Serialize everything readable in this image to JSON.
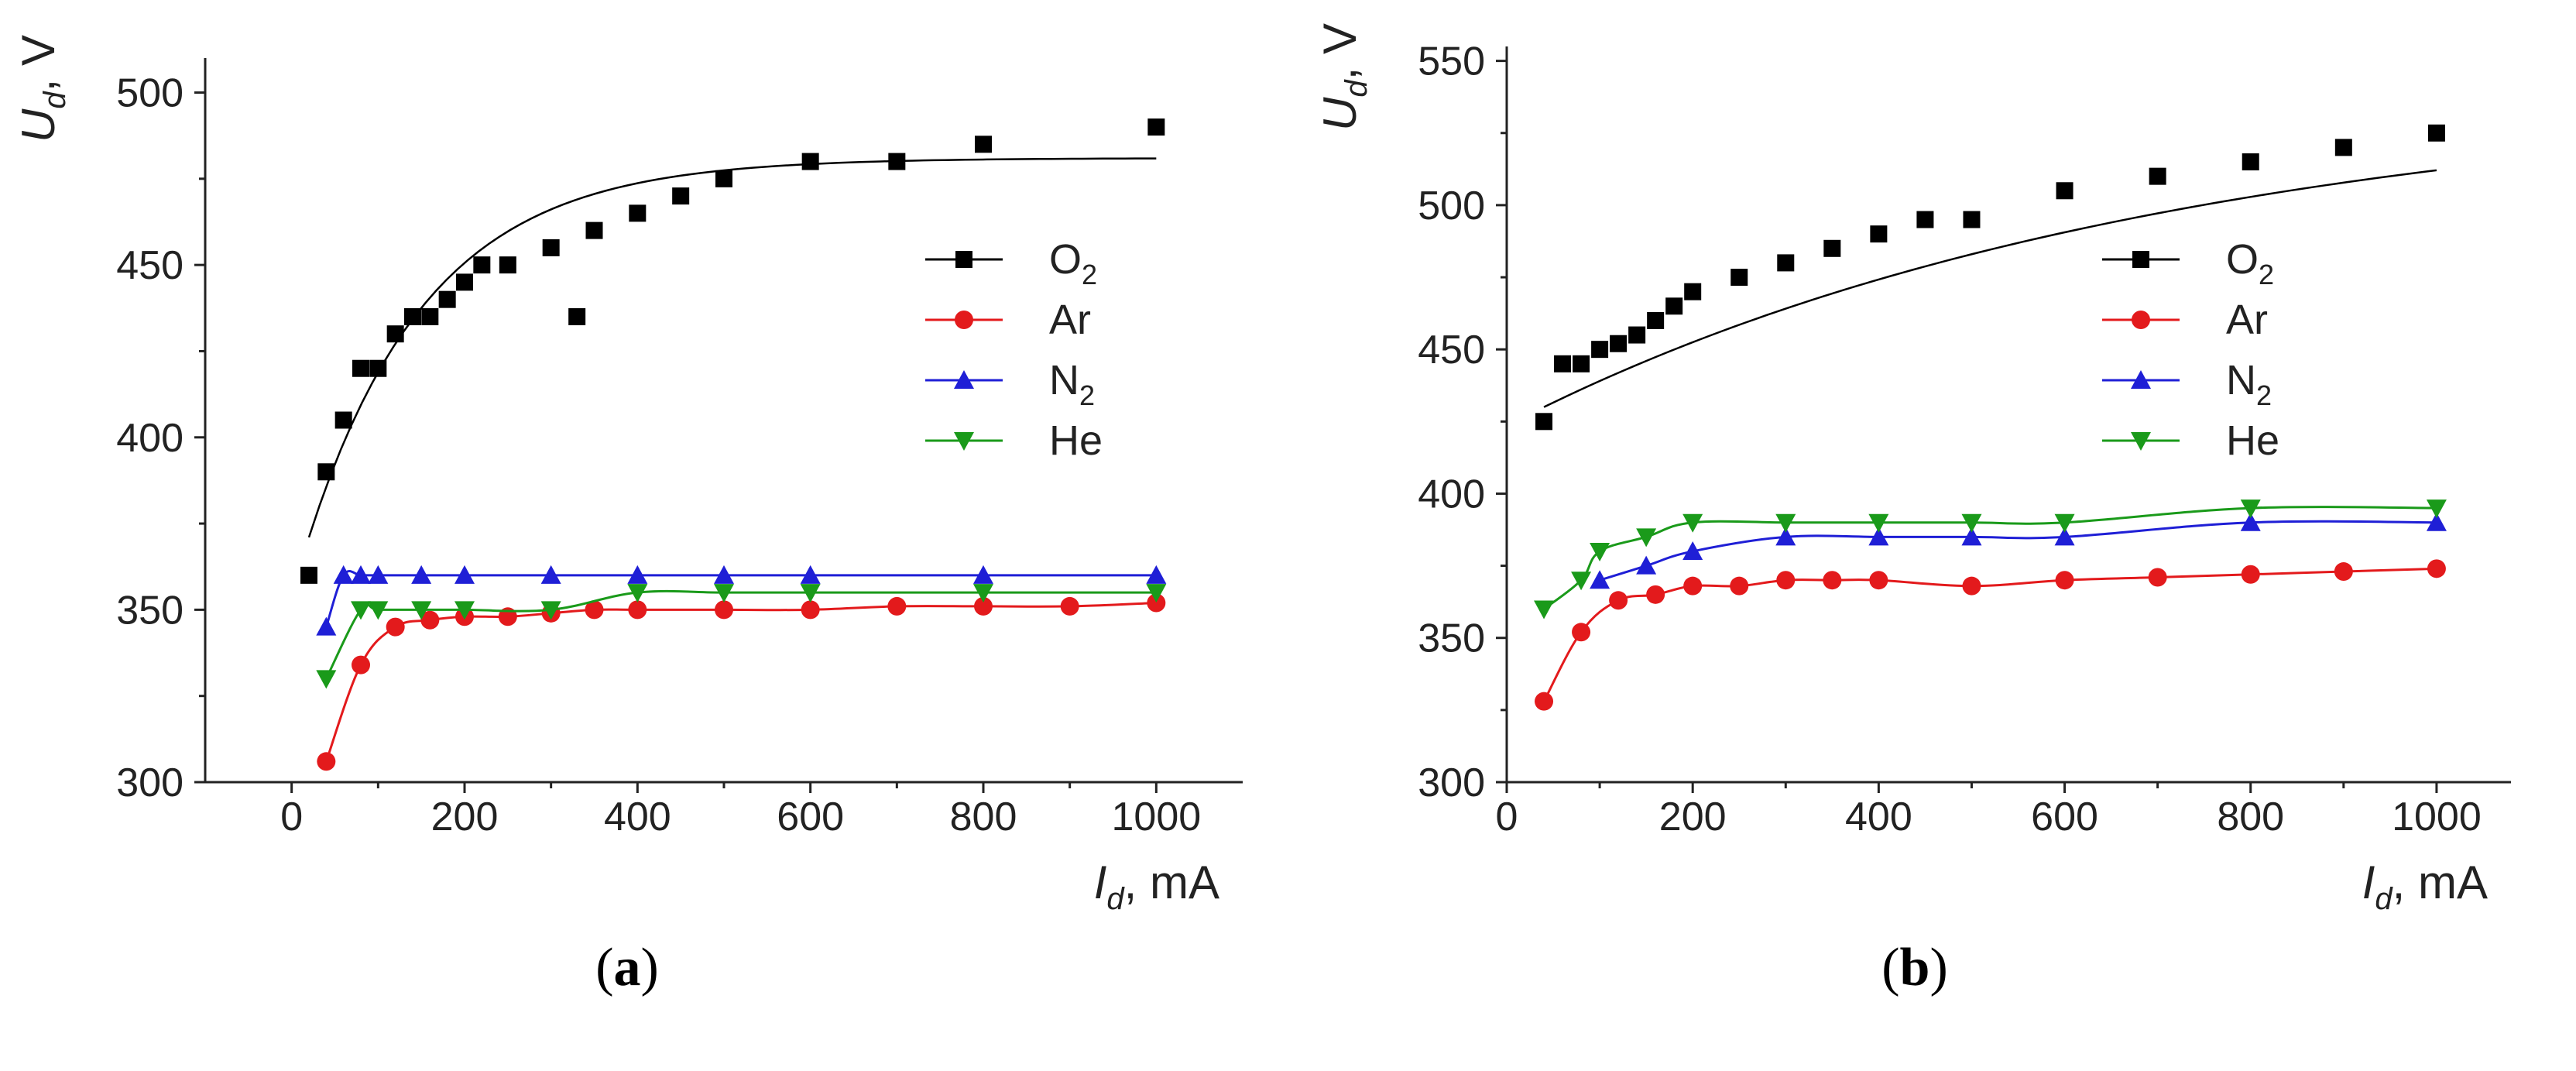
{
  "chart_data": [
    {
      "type": "scatter",
      "panel": "a",
      "caption_open": "(",
      "caption_letter": "a",
      "caption_close": ")",
      "xlabel_var": "I",
      "xlabel_sub": "d",
      "xlabel_unit": ", mA",
      "ylabel_var": "U",
      "ylabel_sub": "d",
      "ylabel_unit": ", V",
      "xlim": [
        -100,
        1100
      ],
      "ylim": [
        300,
        510
      ],
      "xticks": [
        0,
        200,
        400,
        600,
        800,
        1000
      ],
      "yticks": [
        300,
        350,
        400,
        450,
        500
      ],
      "legend_position": "right",
      "series": [
        {
          "name": "O",
          "name_sub": "2",
          "color": "#000000",
          "marker": "square",
          "fit": "exp",
          "fit_params": {
            "a": 481,
            "b": 110,
            "tau": 140
          },
          "x": [
            20,
            40,
            60,
            80,
            100,
            120,
            140,
            160,
            180,
            200,
            220,
            250,
            300,
            330,
            350,
            400,
            450,
            500,
            600,
            700,
            800,
            1000
          ],
          "y": [
            360,
            390,
            405,
            420,
            420,
            430,
            435,
            435,
            440,
            445,
            450,
            450,
            455,
            435,
            460,
            465,
            470,
            475,
            480,
            480,
            485,
            490
          ]
        },
        {
          "name": "Ar",
          "name_sub": "",
          "color": "#e31a1c",
          "marker": "circle",
          "fit": "line",
          "x": [
            40,
            80,
            120,
            160,
            200,
            250,
            300,
            350,
            400,
            500,
            600,
            700,
            800,
            900,
            1000
          ],
          "y": [
            306,
            334,
            345,
            347,
            348,
            348,
            349,
            350,
            350,
            350,
            350,
            351,
            351,
            351,
            352
          ]
        },
        {
          "name": "N",
          "name_sub": "2",
          "color": "#1f1fd6",
          "marker": "triangle-up",
          "fit": "line",
          "x": [
            40,
            60,
            80,
            100,
            150,
            200,
            300,
            400,
            500,
            600,
            800,
            1000
          ],
          "y": [
            345,
            360,
            360,
            360,
            360,
            360,
            360,
            360,
            360,
            360,
            360,
            360
          ]
        },
        {
          "name": "He",
          "name_sub": "",
          "color": "#1a9a1a",
          "marker": "triangle-down",
          "fit": "line",
          "x": [
            40,
            80,
            100,
            150,
            200,
            300,
            400,
            500,
            600,
            800,
            1000
          ],
          "y": [
            330,
            350,
            350,
            350,
            350,
            350,
            355,
            355,
            355,
            355,
            355
          ]
        }
      ]
    },
    {
      "type": "scatter",
      "panel": "b",
      "caption_open": "(",
      "caption_letter": "b",
      "caption_close": ")",
      "xlabel_var": "I",
      "xlabel_sub": "d",
      "xlabel_unit": ", mA",
      "ylabel_var": "U",
      "ylabel_sub": "d",
      "ylabel_unit": ", V",
      "xlim": [
        0,
        1080
      ],
      "ylim": [
        300,
        555
      ],
      "xticks": [
        0,
        200,
        400,
        600,
        800,
        1000
      ],
      "yticks": [
        300,
        350,
        400,
        450,
        500,
        550
      ],
      "legend_position": "right",
      "series": [
        {
          "name": "O",
          "name_sub": "2",
          "color": "#000000",
          "marker": "square",
          "fit": "exp",
          "fit_params": {
            "a": 540,
            "b": 110,
            "tau": 700
          },
          "x": [
            40,
            60,
            80,
            100,
            120,
            140,
            160,
            180,
            200,
            250,
            300,
            350,
            400,
            450,
            500,
            600,
            700,
            800,
            900,
            1000
          ],
          "y": [
            425,
            445,
            445,
            450,
            452,
            455,
            460,
            465,
            470,
            475,
            480,
            485,
            490,
            495,
            495,
            505,
            510,
            515,
            520,
            525
          ]
        },
        {
          "name": "Ar",
          "name_sub": "",
          "color": "#e31a1c",
          "marker": "circle",
          "fit": "line",
          "x": [
            40,
            80,
            120,
            160,
            200,
            250,
            300,
            350,
            400,
            500,
            600,
            700,
            800,
            900,
            1000
          ],
          "y": [
            328,
            352,
            363,
            365,
            368,
            368,
            370,
            370,
            370,
            368,
            370,
            371,
            372,
            373,
            374
          ]
        },
        {
          "name": "N",
          "name_sub": "2",
          "color": "#1f1fd6",
          "marker": "triangle-up",
          "fit": "line",
          "x": [
            100,
            150,
            200,
            300,
            400,
            500,
            600,
            800,
            1000
          ],
          "y": [
            370,
            375,
            380,
            385,
            385,
            385,
            385,
            390,
            390
          ]
        },
        {
          "name": "He",
          "name_sub": "",
          "color": "#1a9a1a",
          "marker": "triangle-down",
          "fit": "line",
          "x": [
            40,
            80,
            100,
            150,
            200,
            300,
            400,
            500,
            600,
            800,
            1000
          ],
          "y": [
            360,
            370,
            380,
            385,
            390,
            390,
            390,
            390,
            390,
            395,
            395
          ]
        }
      ]
    }
  ]
}
